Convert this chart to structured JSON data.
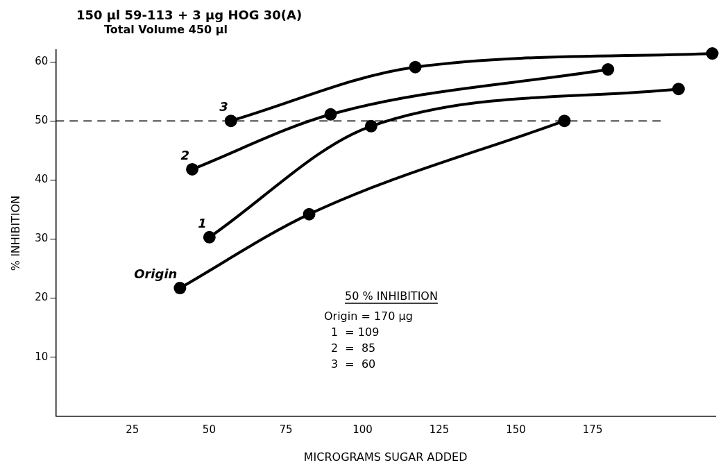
{
  "chart_data": {
    "type": "line",
    "title": "150 µl 59-113 + 3 µg HOG 30(A)",
    "subtitle": "Total Volume 450 µl",
    "xlabel": "MICROGRAMS SUGAR ADDED",
    "ylabel": "% INHIBITION",
    "xlim": [
      0,
      215
    ],
    "xticks": [
      25,
      50,
      75,
      100,
      125,
      150,
      175
    ],
    "ylim": [
      0,
      62
    ],
    "yticks": [
      10,
      20,
      30,
      40,
      50,
      60
    ],
    "grid": false,
    "legend": false,
    "marker": "circle",
    "line_style": "solid",
    "series": [
      {
        "name": "Origin",
        "color": "#000000",
        "x": [
          40.5,
          82.6,
          165.8
        ],
        "values": [
          21.7,
          34.2,
          50.0
        ]
      },
      {
        "name": "1",
        "color": "#000000",
        "x": [
          50.1,
          102.8,
          203
        ],
        "values": [
          30.3,
          49.1,
          55.4
        ]
      },
      {
        "name": "2",
        "color": "#000000",
        "x": [
          44.5,
          89.6,
          180
        ],
        "values": [
          41.8,
          51.1,
          58.7
        ]
      },
      {
        "name": "3",
        "color": "#000000",
        "x": [
          57.1,
          117.2,
          214
        ],
        "values": [
          50.0,
          59.1,
          61.4
        ]
      }
    ],
    "ref_lines": [
      {
        "axis": "y",
        "value": 50,
        "line_style": "dashed",
        "color": "#000000"
      }
    ],
    "annotations": [
      "50 % INHIBITION",
      "Origin = 170 µg",
      "1  = 109",
      "2  =  85",
      "3  =  60"
    ]
  }
}
